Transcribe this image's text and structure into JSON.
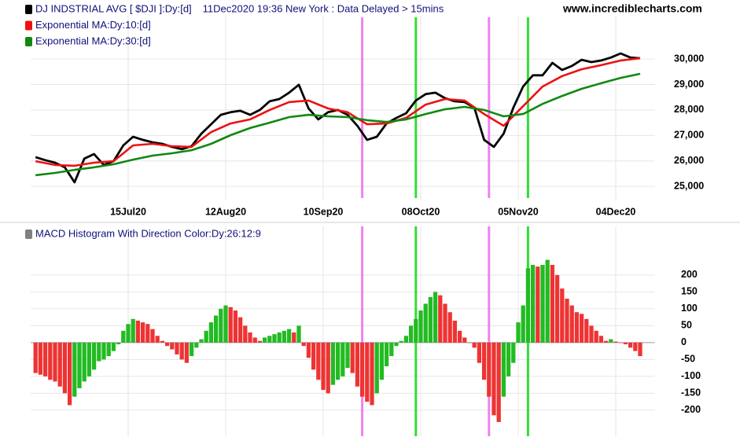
{
  "chart_data": [
    {
      "type": "line",
      "subtitle": "11Dec2020 19:36 New York : Data Delayed > 15mins",
      "source": "www.incrediblecharts.com",
      "xlim": [
        -1,
        127
      ],
      "ylim": [
        24450,
        31700
      ],
      "yticks": [
        {
          "value": 25000,
          "label": "25,000"
        },
        {
          "value": 26000,
          "label": "26,000"
        },
        {
          "value": 27000,
          "label": "27,000"
        },
        {
          "value": 28000,
          "label": "28,000"
        },
        {
          "value": 29000,
          "label": "29,000"
        },
        {
          "value": 30000,
          "label": "30,000"
        }
      ],
      "xticks": [
        {
          "value": 19,
          "label": "15Jul20"
        },
        {
          "value": 39,
          "label": "12Aug20"
        },
        {
          "value": 59,
          "label": "10Sep20"
        },
        {
          "value": 79,
          "label": "08Oct20"
        },
        {
          "value": 99,
          "label": "05Nov20"
        },
        {
          "value": 119,
          "label": "04Dec20"
        }
      ],
      "grid": true,
      "markers": [
        {
          "x": 67,
          "color": "#ee82ee"
        },
        {
          "x": 78,
          "color": "#33dd33"
        },
        {
          "x": 93,
          "color": "#ee82ee"
        },
        {
          "x": 101,
          "color": "#33dd33"
        }
      ],
      "series": [
        {
          "name": "DJ INDSTRIAL AVG [ $DJI ]:Dy:[d]",
          "color": "#000000",
          "x": [
            0,
            2,
            4,
            6,
            8,
            10,
            12,
            14,
            16,
            18,
            20,
            22,
            24,
            26,
            28,
            30,
            32,
            34,
            36,
            38,
            40,
            42,
            44,
            46,
            48,
            50,
            52,
            54,
            56,
            58,
            60,
            62,
            64,
            66,
            68,
            70,
            72,
            74,
            76,
            78,
            80,
            82,
            84,
            86,
            88,
            90,
            92,
            94,
            96,
            98,
            100,
            102,
            104,
            106,
            108,
            110,
            112,
            114,
            116,
            118,
            120,
            122,
            124
          ],
          "values": [
            26150,
            26030,
            25930,
            25750,
            25160,
            26090,
            26270,
            25840,
            25990,
            26610,
            26950,
            26830,
            26730,
            26670,
            26550,
            26460,
            26580,
            27070,
            27440,
            27810,
            27910,
            27970,
            27810,
            28000,
            28340,
            28430,
            28680,
            28990,
            28060,
            27630,
            27910,
            28000,
            27810,
            27380,
            26830,
            26950,
            27470,
            27690,
            27870,
            28370,
            28620,
            28680,
            28460,
            28340,
            28310,
            28090,
            26830,
            26550,
            27070,
            28090,
            28920,
            29360,
            29360,
            29850,
            29570,
            29730,
            29970,
            29880,
            29940,
            30060,
            30220,
            30060,
            30030
          ]
        },
        {
          "name": "Exponential MA:Dy:10:[d]",
          "color": "#ee1111",
          "x": [
            0,
            4,
            8,
            12,
            16,
            20,
            24,
            28,
            32,
            36,
            40,
            44,
            48,
            52,
            56,
            60,
            64,
            68,
            72,
            76,
            80,
            84,
            88,
            92,
            96,
            100,
            104,
            108,
            112,
            116,
            120,
            124
          ],
          "values": [
            25990,
            25840,
            25810,
            25930,
            25990,
            26610,
            26670,
            26580,
            26550,
            27130,
            27470,
            27630,
            28000,
            28310,
            28370,
            28060,
            27910,
            27440,
            27470,
            27690,
            28210,
            28430,
            28370,
            27840,
            27380,
            28150,
            28920,
            29330,
            29600,
            29760,
            29940,
            30030
          ]
        },
        {
          "name": "Exponential MA:Dy:30:[d]",
          "color": "#118811",
          "x": [
            0,
            4,
            8,
            12,
            16,
            20,
            24,
            28,
            32,
            36,
            40,
            44,
            48,
            52,
            56,
            60,
            64,
            68,
            72,
            76,
            80,
            84,
            88,
            92,
            96,
            100,
            104,
            108,
            112,
            116,
            120,
            124
          ],
          "values": [
            25440,
            25530,
            25650,
            25750,
            25870,
            26050,
            26210,
            26300,
            26420,
            26670,
            27010,
            27290,
            27500,
            27720,
            27810,
            27750,
            27720,
            27600,
            27530,
            27630,
            27840,
            28030,
            28120,
            28000,
            27750,
            27840,
            28240,
            28550,
            28830,
            29050,
            29260,
            29420
          ]
        }
      ]
    },
    {
      "type": "bar",
      "title": "MACD Histogram With Direction Color:Dy:26:12:9",
      "legend_color": "#808080",
      "up_color": "#22bb22",
      "down_color": "#ee3333",
      "xlim": [
        -1,
        127
      ],
      "ylim": [
        -277,
        344
      ],
      "yticks": [
        -200,
        -150,
        -100,
        -50,
        0,
        50,
        100,
        150,
        200
      ],
      "values": [
        -90,
        -95,
        -100,
        -110,
        -115,
        -130,
        -150,
        -185,
        -160,
        -135,
        -115,
        -100,
        -80,
        -55,
        -50,
        -40,
        -25,
        -5,
        35,
        55,
        70,
        65,
        60,
        55,
        40,
        20,
        5,
        -10,
        -20,
        -35,
        -50,
        -60,
        -40,
        -15,
        10,
        35,
        60,
        80,
        100,
        110,
        105,
        95,
        75,
        50,
        30,
        15,
        5,
        15,
        20,
        25,
        30,
        35,
        40,
        30,
        50,
        -10,
        -45,
        -80,
        -110,
        -140,
        -150,
        -125,
        -110,
        -100,
        -75,
        -90,
        -130,
        -160,
        -175,
        -185,
        -150,
        -110,
        -70,
        -40,
        -10,
        5,
        20,
        50,
        70,
        95,
        115,
        135,
        150,
        140,
        115,
        90,
        65,
        35,
        15,
        0,
        -15,
        -60,
        -110,
        -160,
        -215,
        -235,
        -160,
        -100,
        -60,
        60,
        110,
        220,
        230,
        225,
        230,
        245,
        230,
        200,
        160,
        130,
        110,
        90,
        85,
        70,
        50,
        35,
        20,
        5,
        10,
        3,
        0,
        -5,
        -15,
        -25,
        -40
      ]
    }
  ]
}
